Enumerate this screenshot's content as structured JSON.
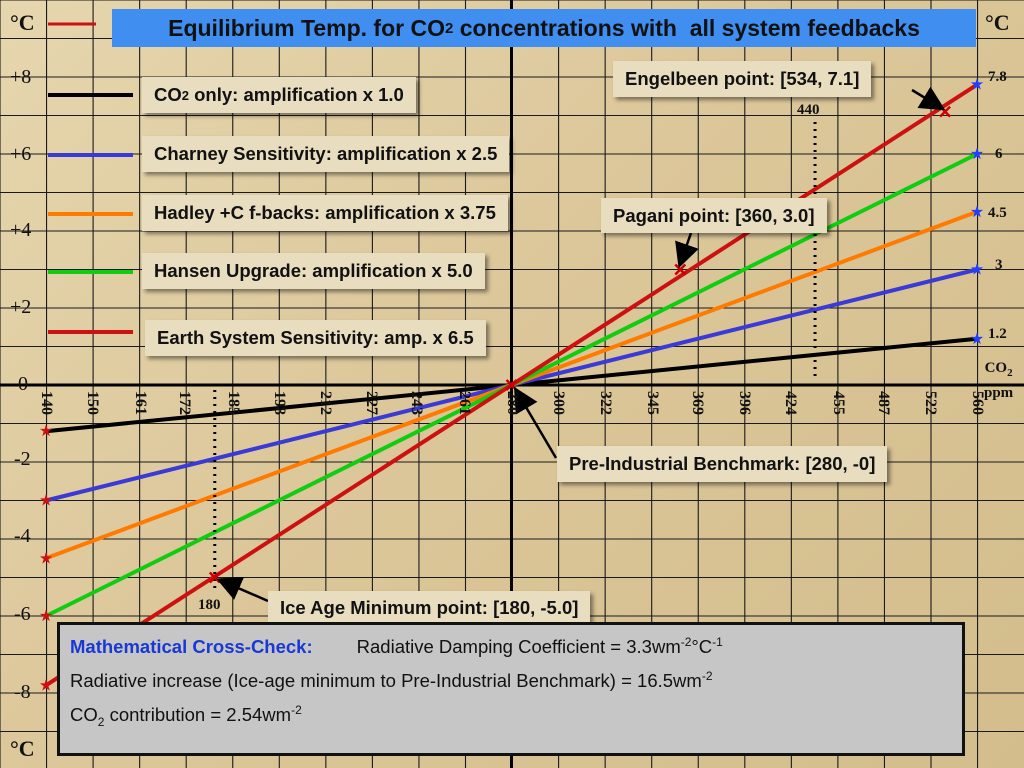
{
  "title": {
    "pre": "Equilibrium Temp. for CO",
    "sub": "2",
    "post": " concentrations with  all system feedbacks"
  },
  "degc_label": "°C",
  "y_tick_labels": [
    "+8",
    "+6",
    "+4",
    "+2",
    "0",
    "-2",
    "-4",
    "-6",
    "-8"
  ],
  "x_axis_label_top": "CO",
  "x_axis_label_sub": "2",
  "x_axis_label_bottom": "ppm",
  "legend": [
    {
      "pre": "CO",
      "sub": "2",
      "post": " only: amplification x 1.0",
      "color": "#000000"
    },
    {
      "pre": "Charney Sensitivity: amplification x 2.5",
      "sub": "",
      "post": "",
      "color": "#3a3ad6"
    },
    {
      "pre": "Hadley +C f-backs: amplification x 3.75",
      "sub": "",
      "post": "",
      "color": "#ff7a00"
    },
    {
      "pre": "Hansen Upgrade: amplification x 5.0",
      "sub": "",
      "post": "",
      "color": "#11cc11"
    },
    {
      "pre": "Earth System Sensitivity: amp. x 6.5",
      "sub": "",
      "post": "",
      "color": "#cc1111"
    }
  ],
  "annotations": {
    "engelbeen": "Engelbeen point: [534, 7.1]",
    "pagani": "Pagani point: [360, 3.0]",
    "preindustrial": "Pre-Industrial Benchmark: [280, -0]",
    "iceage": "Ice Age Minimum point: [180, -5.0]",
    "marker_440": "440",
    "marker_180": "180"
  },
  "math": {
    "heading": "Mathematical Cross-Check:",
    "damping_pre": "Radiative Damping Coefficient = 3.3wm",
    "damping_sup1": "-2",
    "damping_mid": "°C",
    "damping_sup2": "-1",
    "increase_pre": "Radiative increase (Ice-age minimum to Pre-Industrial Benchmark) = 16.5wm",
    "increase_sup": "-2",
    "co2_pre": "CO",
    "co2_sub": "2",
    "co2_post": " contribution = 2.54wm",
    "co2_sup": "-2"
  },
  "chart_data": {
    "type": "line",
    "title": "Equilibrium Temp. for CO2 concentrations with  all system feedbacks",
    "xlabel": "CO2 ppm",
    "ylabel": "°C",
    "x_scale": "log",
    "xlim": [
      140,
      560
    ],
    "ylim": [
      -8,
      8
    ],
    "x_tick_labels": [
      "140",
      "150",
      "161",
      "172",
      "185",
      "198",
      "212",
      "227",
      "243",
      "261",
      "280",
      "300",
      "322",
      "345",
      "369",
      "396",
      "424",
      "455",
      "487",
      "522",
      "560"
    ],
    "grid": true,
    "series": [
      {
        "name": "CO2 only: amplification x 1.0",
        "color": "#000000",
        "x": [
          140,
          560
        ],
        "y": [
          -1.2,
          1.2
        ],
        "end_label": "1.2"
      },
      {
        "name": "Charney Sensitivity: amplification x 2.5",
        "color": "#3a3ad6",
        "x": [
          140,
          560
        ],
        "y": [
          -3.0,
          3.0
        ],
        "end_label": "3"
      },
      {
        "name": "Hadley +C f-backs: amplification x 3.75",
        "color": "#ff7a00",
        "x": [
          140,
          560
        ],
        "y": [
          -4.5,
          4.5
        ],
        "end_label": "4.5"
      },
      {
        "name": "Hansen Upgrade: amplification x 5.0",
        "color": "#11cc11",
        "x": [
          140,
          560
        ],
        "y": [
          -6.0,
          6.0
        ],
        "end_label": "6"
      },
      {
        "name": "Earth System Sensitivity: amp. x 6.5",
        "color": "#cc1111",
        "x": [
          140,
          560
        ],
        "y": [
          -7.8,
          7.8
        ],
        "end_label": "7.8"
      }
    ],
    "points": [
      {
        "label": "Engelbeen point",
        "x": 534,
        "y": 7.1
      },
      {
        "label": "Pagani point",
        "x": 360,
        "y": 3.0
      },
      {
        "label": "Pre-Industrial Benchmark",
        "x": 280,
        "y": 0
      },
      {
        "label": "Ice Age Minimum point",
        "x": 180,
        "y": -5.0
      }
    ],
    "reference_lines": [
      {
        "x": 440
      },
      {
        "x": 180
      }
    ]
  }
}
